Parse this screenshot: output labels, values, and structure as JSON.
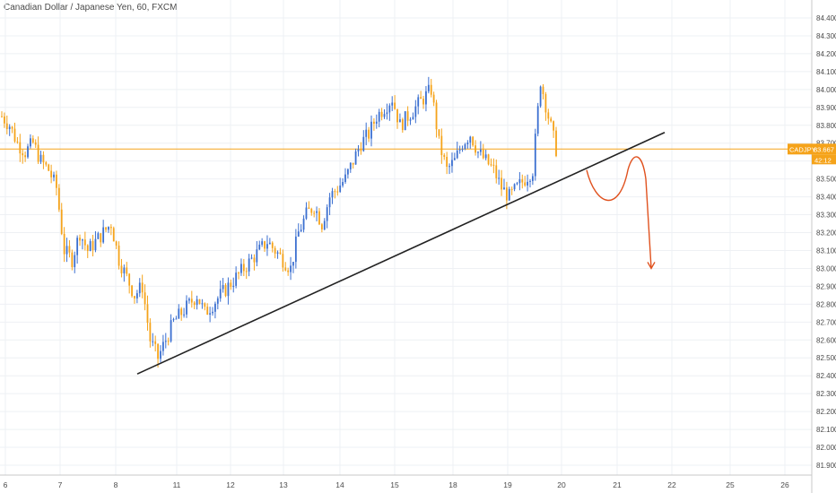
{
  "header": {
    "title": "Canadian Dollar / Japanese Yen, 60, FXCM"
  },
  "price_tag": {
    "symbol": "CADJPY",
    "price": "83.667",
    "countdown": "42:12",
    "value": 83.667
  },
  "colors": {
    "bull": "#3b6fd0",
    "bear": "#f5a31a",
    "price_line": "#f5a31a",
    "tag_bg": "#f5a31a",
    "trendline": "#222222",
    "projection": "#e0521f",
    "grid": "#eef0f4",
    "axis": "#c8c8c8"
  },
  "chart_data": {
    "type": "candlestick",
    "title": "Canadian Dollar / Japanese Yen, 60, FXCM",
    "ylim": [
      81.86,
      84.5
    ],
    "y_ticks": [
      "84.400",
      "84.300",
      "84.200",
      "84.100",
      "84.000",
      "83.900",
      "83.800",
      "83.700",
      "83.600",
      "83.500",
      "83.400",
      "83.300",
      "83.200",
      "83.100",
      "83.000",
      "82.900",
      "82.800",
      "82.700",
      "82.600",
      "82.500",
      "82.400",
      "82.300",
      "82.200",
      "82.100",
      "82.000",
      "81.900"
    ],
    "x_ticks": [
      "6",
      "7",
      "8",
      "11",
      "12",
      "13",
      "14",
      "15",
      "18",
      "19",
      "20",
      "21",
      "22",
      "25",
      "26"
    ],
    "grid": true,
    "anchors": [
      [
        0,
        83.85
      ],
      [
        3,
        83.8
      ],
      [
        6,
        83.7
      ],
      [
        9,
        83.65
      ],
      [
        12,
        83.7
      ],
      [
        15,
        83.6
      ],
      [
        18,
        83.55
      ],
      [
        21,
        83.45
      ],
      [
        24,
        83.1
      ],
      [
        27,
        83.05
      ],
      [
        30,
        83.2
      ],
      [
        33,
        83.1
      ],
      [
        36,
        83.15
      ],
      [
        39,
        83.2
      ],
      [
        42,
        83.25
      ],
      [
        45,
        83.05
      ],
      [
        48,
        82.95
      ],
      [
        51,
        82.85
      ],
      [
        54,
        82.9
      ],
      [
        57,
        82.6
      ],
      [
        60,
        82.5
      ],
      [
        63,
        82.6
      ],
      [
        66,
        82.7
      ],
      [
        69,
        82.75
      ],
      [
        72,
        82.8
      ],
      [
        75,
        82.85
      ],
      [
        78,
        82.75
      ],
      [
        81,
        82.8
      ],
      [
        84,
        82.85
      ],
      [
        87,
        82.9
      ],
      [
        90,
        82.95
      ],
      [
        93,
        83.0
      ],
      [
        96,
        83.05
      ],
      [
        99,
        83.1
      ],
      [
        102,
        83.15
      ],
      [
        105,
        83.1
      ],
      [
        108,
        83.05
      ],
      [
        111,
        83.0
      ],
      [
        114,
        83.2
      ],
      [
        117,
        83.3
      ],
      [
        120,
        83.35
      ],
      [
        123,
        83.25
      ],
      [
        126,
        83.4
      ],
      [
        129,
        83.45
      ],
      [
        132,
        83.5
      ],
      [
        135,
        83.6
      ],
      [
        138,
        83.7
      ],
      [
        141,
        83.75
      ],
      [
        144,
        83.85
      ],
      [
        147,
        83.9
      ],
      [
        150,
        83.95
      ],
      [
        153,
        83.8
      ],
      [
        156,
        83.85
      ],
      [
        159,
        83.9
      ],
      [
        162,
        83.95
      ],
      [
        165,
        84.0
      ],
      [
        168,
        83.7
      ],
      [
        171,
        83.55
      ],
      [
        174,
        83.6
      ],
      [
        177,
        83.7
      ],
      [
        180,
        83.75
      ],
      [
        183,
        83.65
      ],
      [
        186,
        83.6
      ],
      [
        189,
        83.55
      ],
      [
        192,
        83.45
      ],
      [
        195,
        83.4
      ],
      [
        198,
        83.45
      ],
      [
        201,
        83.5
      ],
      [
        204,
        83.55
      ],
      [
        207,
        84.05
      ],
      [
        210,
        83.85
      ],
      [
        213,
        83.667
      ]
    ],
    "trendline": {
      "from": [
        82.41,
        0.0
      ],
      "to": [
        83.76,
        1.0
      ]
    },
    "projection": {
      "points": [
        [
          83.55
        ],
        [
          83.4
        ],
        [
          83.6
        ],
        [
          83.0
        ]
      ]
    },
    "last_price": 83.667
  }
}
